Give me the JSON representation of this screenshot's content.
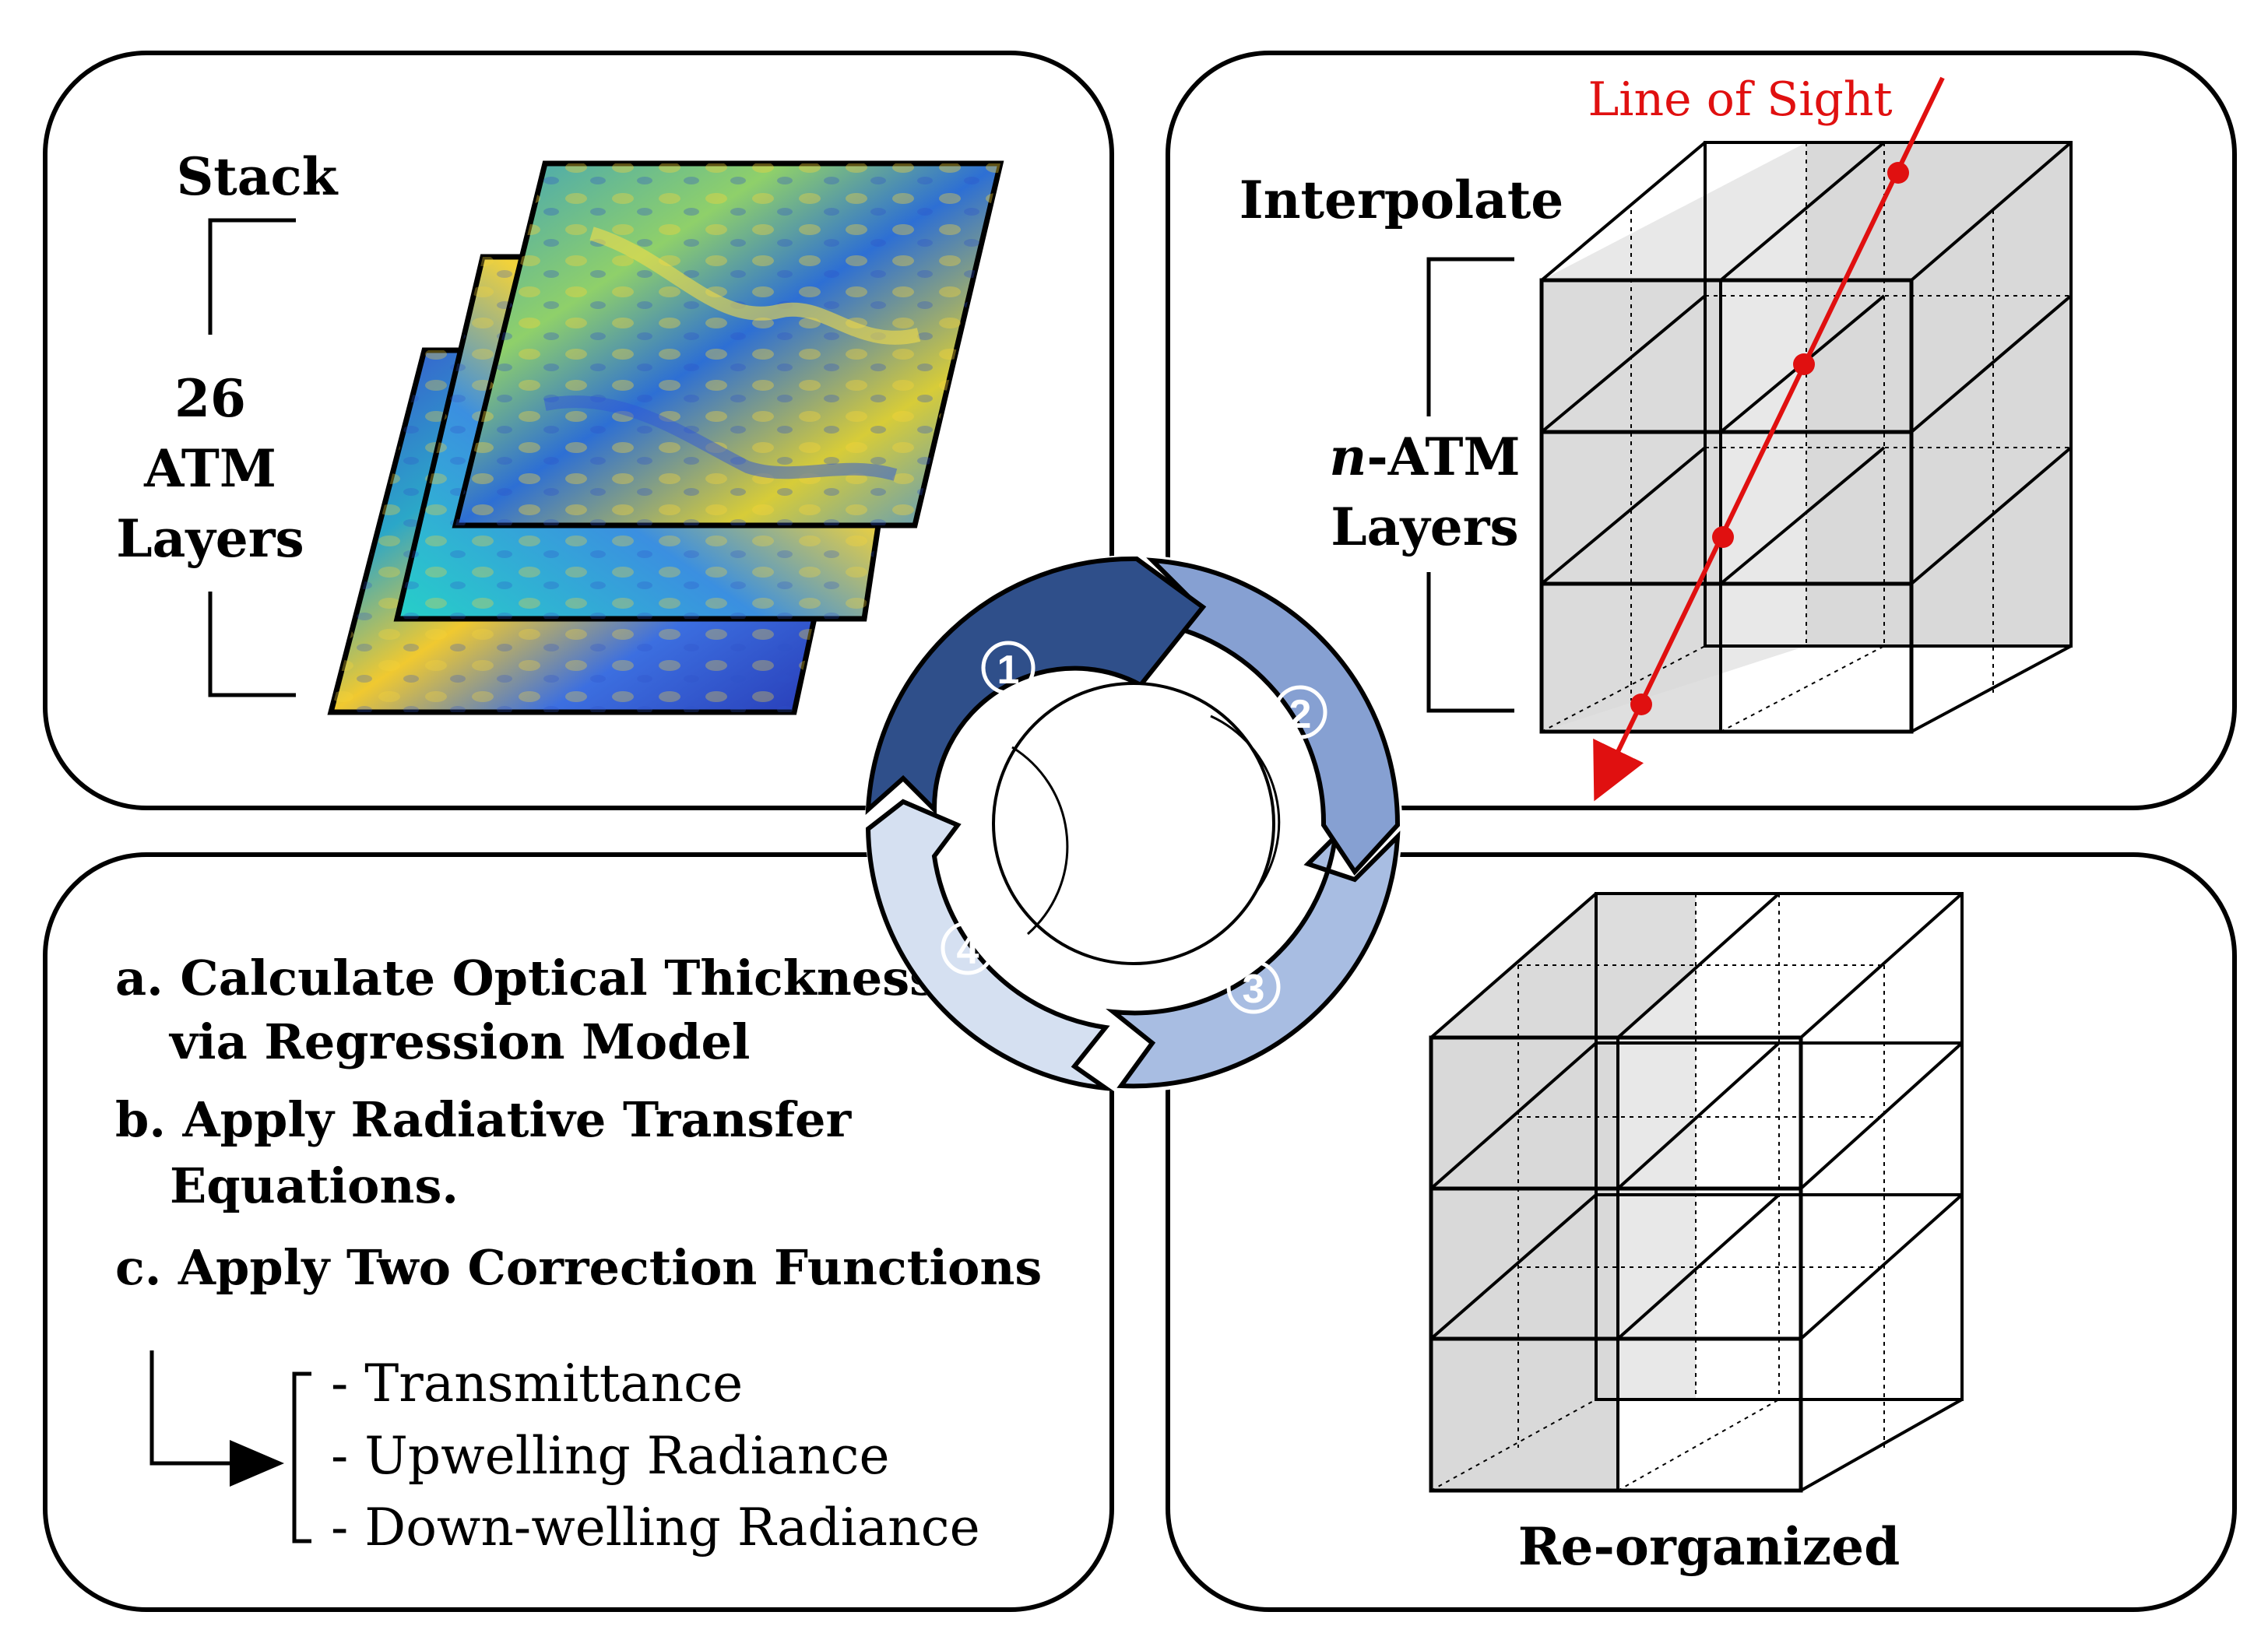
{
  "panel1": {
    "stack_label": "Stack",
    "layer_count": "26",
    "layer_word1": "ATM",
    "layer_word2": "Layers"
  },
  "panel2": {
    "interpolate_label": "Interpolate",
    "n_prefix": "n",
    "n_suffix": "-ATM",
    "layers_label": "Layers",
    "line_of_sight_label": "Line of Sight"
  },
  "panel3": {
    "step_a_line1": "a. Calculate Optical Thickness",
    "step_a_line2": "via Regression Model",
    "step_b_line1": "b. Apply Radiative Transfer",
    "step_b_line2": "Equations.",
    "step_c": "c. Apply Two Correction Functions",
    "corrections": [
      "- Transmittance",
      "- Upwelling Radiance",
      "- Down-welling Radiance"
    ]
  },
  "panel4": {
    "reorganized_label": "Re-organized"
  },
  "cycle": {
    "steps": [
      "1",
      "2",
      "3",
      "4"
    ],
    "colors": [
      "#2f4f8a",
      "#86a0d2",
      "#a8bde2",
      "#d5e0f1"
    ]
  },
  "colors": {
    "line_of_sight": "#e01010",
    "shade": "#d9d9d9"
  }
}
